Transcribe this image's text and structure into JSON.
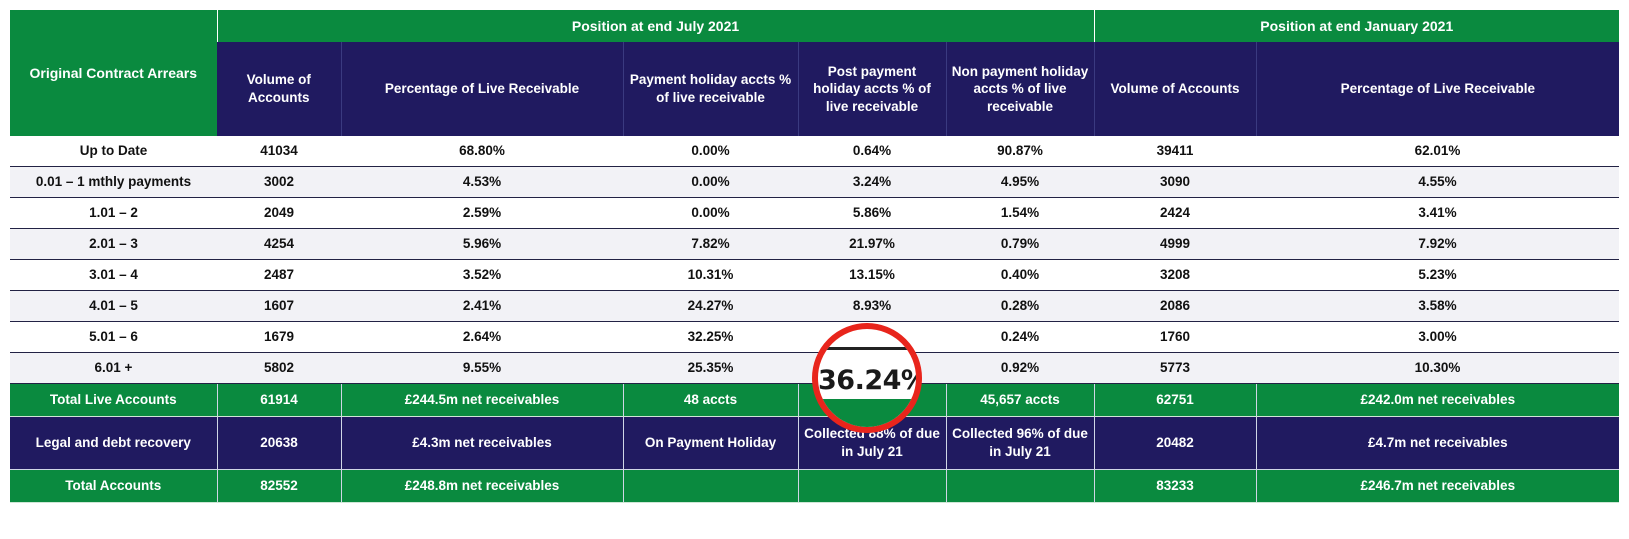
{
  "header": {
    "row_label": "Original Contract Arrears",
    "group_july": "Position at end July 2021",
    "group_jan": "Position at end January 2021",
    "columns": [
      "Volume of Accounts",
      "Percentage of Live Receivable",
      "Payment  holiday accts % of live receivable",
      "Post payment holiday accts % of live receivable",
      "Non payment holiday accts % of live receivable",
      "Volume of Accounts",
      "Percentage of Live Receivable"
    ]
  },
  "rows": [
    {
      "label": "Up to Date",
      "values": [
        "41034",
        "68.80%",
        "0.00%",
        "0.64%",
        "90.87%",
        "39411",
        "62.01%"
      ]
    },
    {
      "label": "0.01 – 1 mthly payments",
      "values": [
        "3002",
        "4.53%",
        "0.00%",
        "3.24%",
        "4.95%",
        "3090",
        "4.55%"
      ]
    },
    {
      "label": "1.01 – 2",
      "values": [
        "2049",
        "2.59%",
        "0.00%",
        "5.86%",
        "1.54%",
        "2424",
        "3.41%"
      ]
    },
    {
      "label": "2.01 – 3",
      "values": [
        "4254",
        "5.96%",
        "7.82%",
        "21.97%",
        "0.79%",
        "4999",
        "7.92%"
      ]
    },
    {
      "label": "3.01 – 4",
      "values": [
        "2487",
        "3.52%",
        "10.31%",
        "13.15%",
        "0.40%",
        "3208",
        "5.23%"
      ]
    },
    {
      "label": "4.01 – 5",
      "values": [
        "1607",
        "2.41%",
        "24.27%",
        "8.93%",
        "0.28%",
        "2086",
        "3.58%"
      ]
    },
    {
      "label": "5.01 – 6",
      "values": [
        "1679",
        "2.64%",
        "32.25%",
        "",
        "0.24%",
        "1760",
        "3.00%"
      ]
    },
    {
      "label": "6.01 +",
      "values": [
        "5802",
        "9.55%",
        "25.35%",
        "",
        "0.92%",
        "5773",
        "10.30%"
      ]
    }
  ],
  "total_live": {
    "label": "Total  Live Accounts",
    "values": [
      "61914",
      "£244.5m net receivables",
      "48 accts",
      "",
      "45,657 accts",
      "62751",
      "£242.0m net receivables"
    ]
  },
  "legal": {
    "label": "Legal and debt recovery",
    "values": [
      "20638",
      "£4.3m net receivables",
      "On Payment Holiday",
      "Collected 88% of due in July 21",
      "Collected 96% of due in July 21",
      "20482",
      "£4.7m net receivables"
    ]
  },
  "total_accounts": {
    "label": "Total  Accounts",
    "values": [
      "82552",
      "£248.8m net receivables",
      "",
      "",
      "",
      "83233",
      "£246.7m net receivables"
    ]
  },
  "zoom_callout": {
    "value": "36.24%",
    "border_color": "#e8251c"
  },
  "colors": {
    "green": "#0a8a3f",
    "navy": "#201a60"
  }
}
